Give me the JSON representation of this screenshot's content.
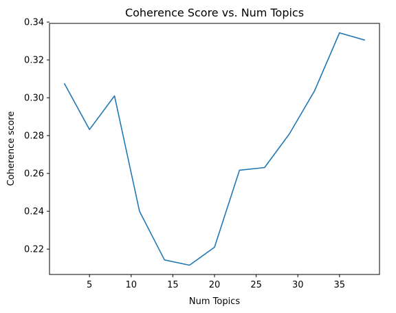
{
  "chart_data": {
    "type": "line",
    "title": "Coherence Score vs. Num Topics",
    "xlabel": "Num Topics",
    "ylabel": "Coherence score",
    "xlim": [
      0.2,
      39.8
    ],
    "ylim": [
      0.2066,
      0.3393
    ],
    "xticks": [
      5,
      10,
      15,
      20,
      25,
      30,
      35
    ],
    "yticks": [
      0.22,
      0.24,
      0.26,
      0.28,
      0.3,
      0.32,
      0.34
    ],
    "ytick_labels": [
      "0.22",
      "0.24",
      "0.26",
      "0.28",
      "0.30",
      "0.32",
      "0.34"
    ],
    "grid": false,
    "series": [
      {
        "color": "#1f77b4",
        "x": [
          2,
          5,
          8,
          11,
          14,
          17,
          20,
          23,
          26,
          29,
          32,
          35,
          38
        ],
        "y": [
          0.3074,
          0.2832,
          0.301,
          0.24,
          0.2143,
          0.2115,
          0.221,
          0.2617,
          0.2631,
          0.281,
          0.3036,
          0.3343,
          0.3305
        ]
      }
    ]
  }
}
